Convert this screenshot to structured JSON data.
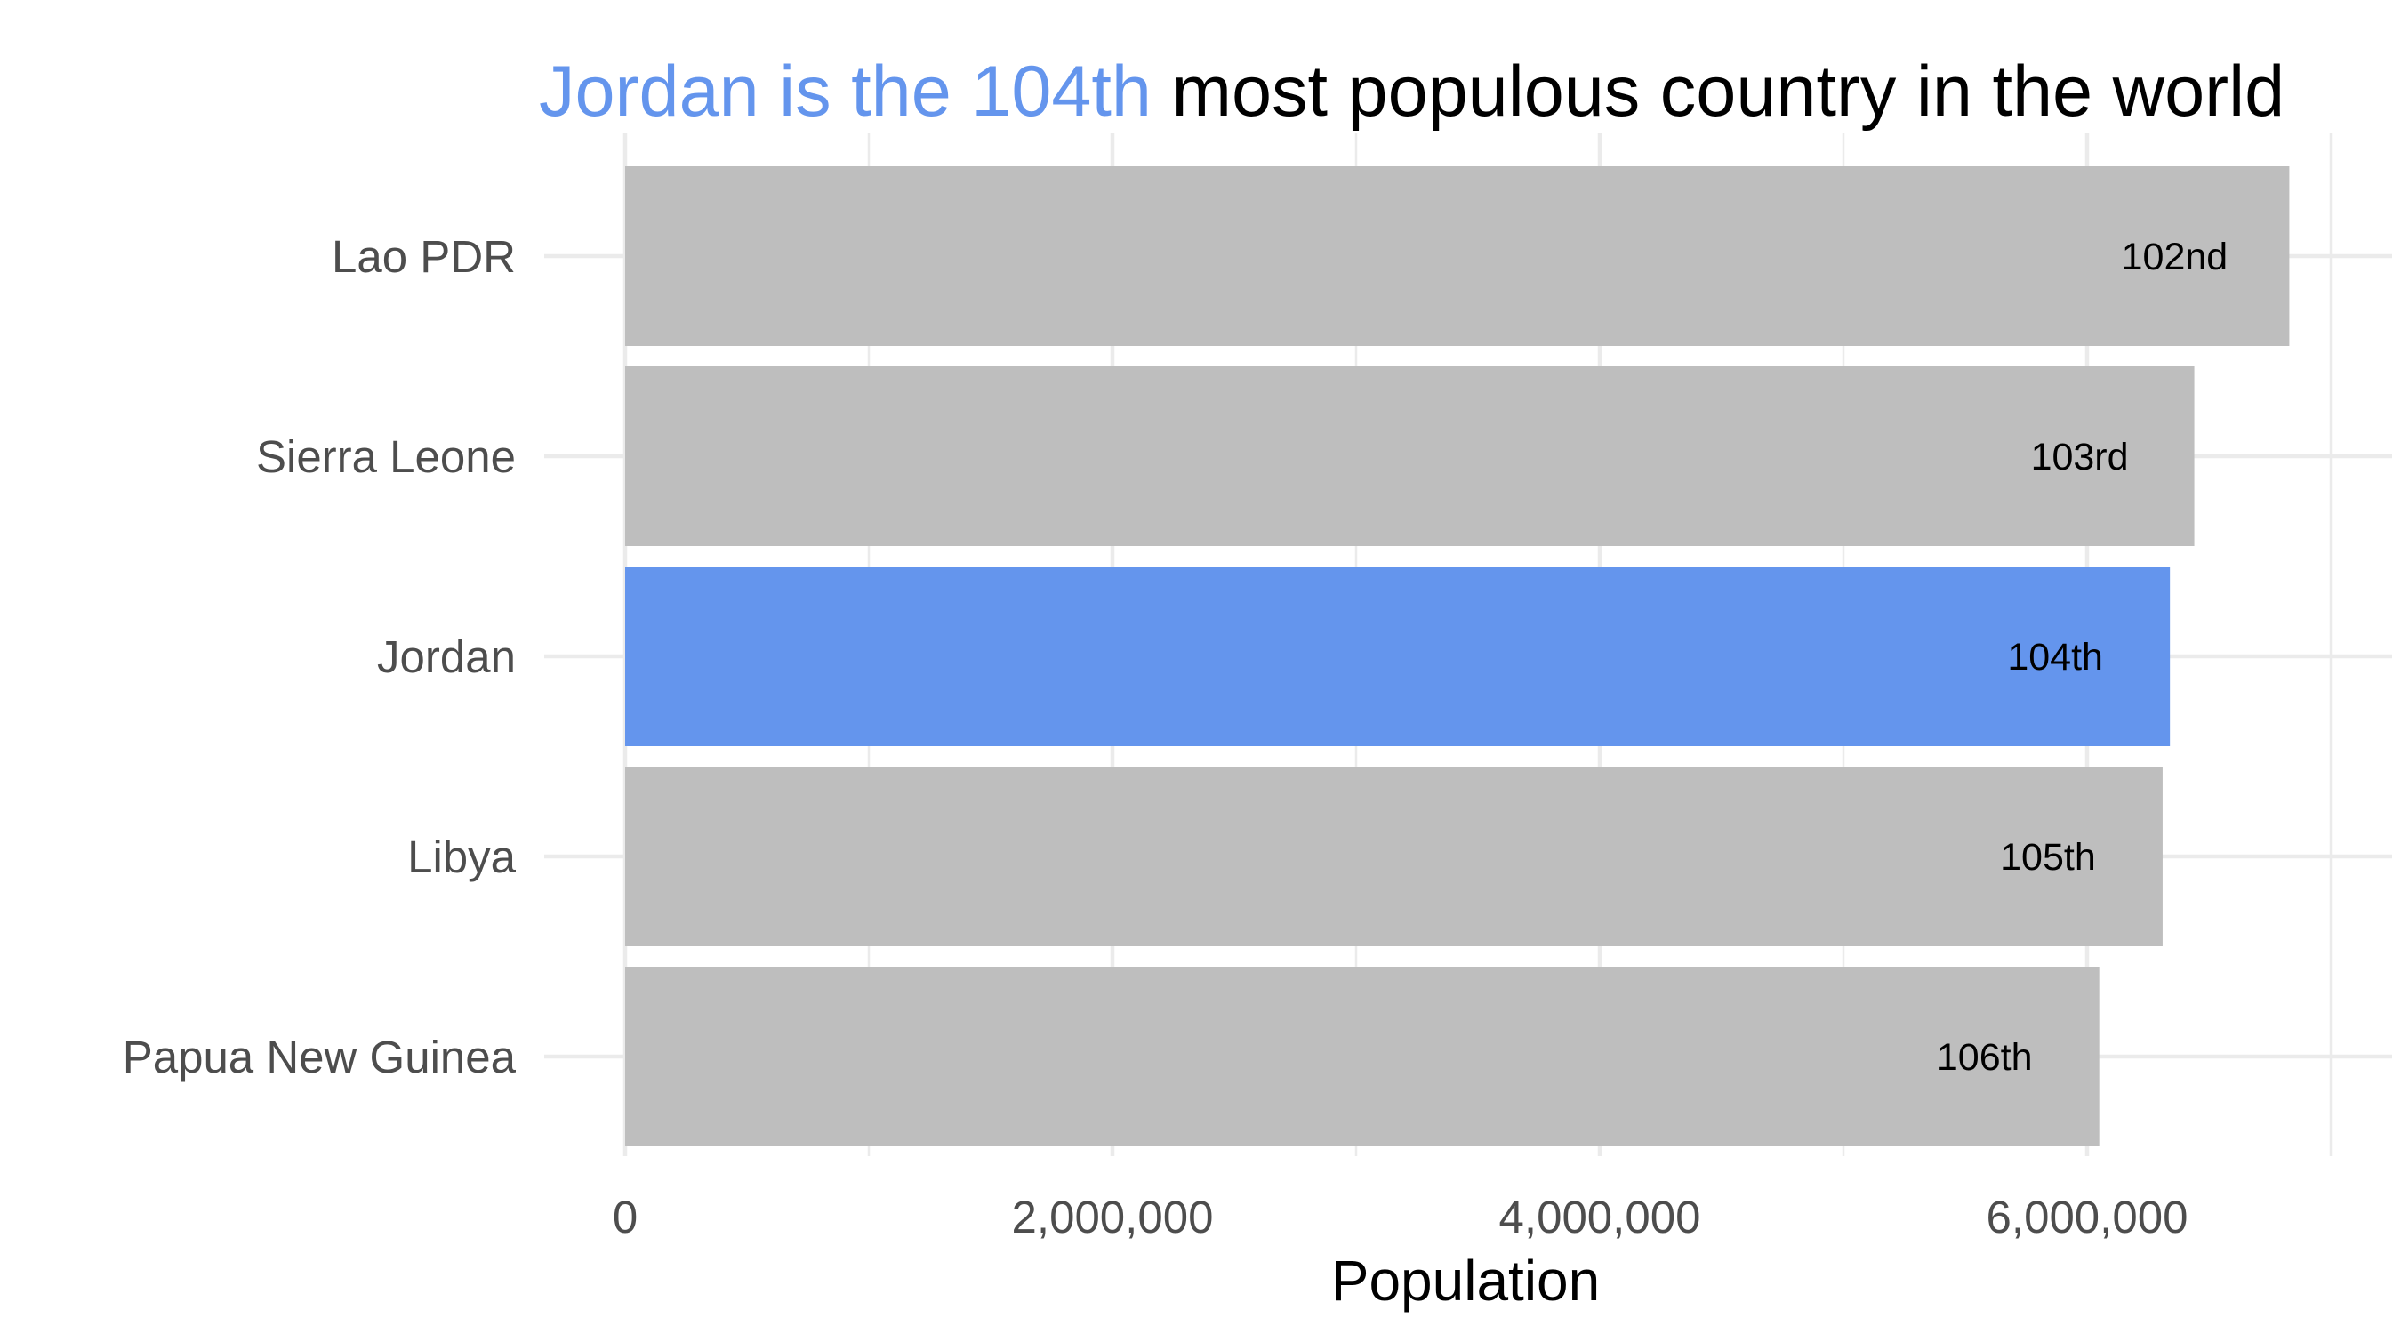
{
  "chart_data": {
    "type": "bar",
    "orientation": "horizontal",
    "title": {
      "highlight": "Jordan is the 104th",
      "rest": " most populous country in the world"
    },
    "categories": [
      "Lao PDR",
      "Sierra Leone",
      "Jordan",
      "Libya",
      "Papua New Guinea"
    ],
    "values": [
      6830000,
      6440000,
      6340000,
      6310000,
      6050000
    ],
    "labels": [
      "102nd",
      "103rd",
      "104th",
      "105th",
      "106th"
    ],
    "highlight_category": "Jordan",
    "xlabel": "Population",
    "ylabel": "",
    "xlim": [
      0,
      7000000
    ],
    "xticks": [
      0,
      2000000,
      4000000,
      6000000
    ],
    "xtick_labels": [
      "0",
      "2,000,000",
      "4,000,000",
      "6,000,000"
    ],
    "grid": true,
    "colors": {
      "bar": "#bebebe",
      "highlight": "#6495ed",
      "grid": "#ebebeb",
      "title_rest": "#000000"
    }
  }
}
